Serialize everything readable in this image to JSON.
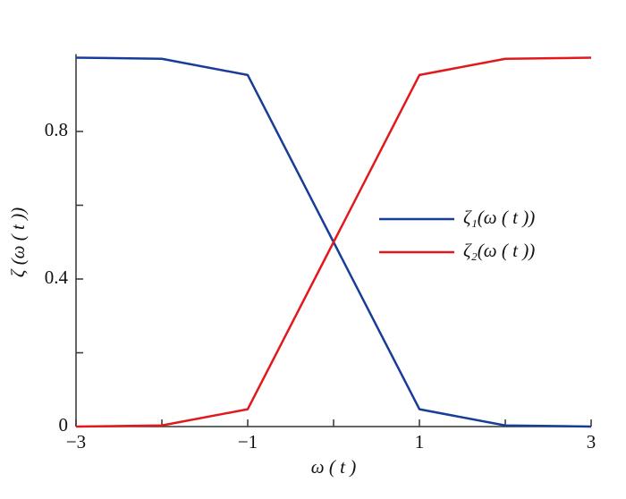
{
  "chart_data": {
    "type": "line",
    "xlabel": "ω ( t )",
    "ylabel": "ζ (ω ( t ))",
    "x": [
      -3,
      -2,
      -1,
      0,
      1,
      2,
      3
    ],
    "series": [
      {
        "name": "ζ₁(ω ( t ))",
        "color": "#173d98",
        "values": [
          1.0,
          0.997,
          0.953,
          0.5,
          0.047,
          0.003,
          0.0
        ]
      },
      {
        "name": "ζ₂(ω ( t ))",
        "color": "#e2191c",
        "values": [
          0.0,
          0.003,
          0.047,
          0.5,
          0.953,
          0.997,
          1.0
        ]
      }
    ],
    "xlim": [
      -3,
      3
    ],
    "xticks": [
      {
        "value": -3,
        "label": "−3"
      },
      {
        "value": -1,
        "label": "−1"
      },
      {
        "value": 1,
        "label": "1"
      },
      {
        "value": 3,
        "label": "3"
      }
    ],
    "xminorticks": [
      -2,
      0,
      2
    ],
    "ylim": [
      0,
      1
    ],
    "yticks": [
      0,
      0.4,
      0.8
    ],
    "yminorticks": [
      0.2,
      0.6
    ],
    "legend": "right"
  }
}
